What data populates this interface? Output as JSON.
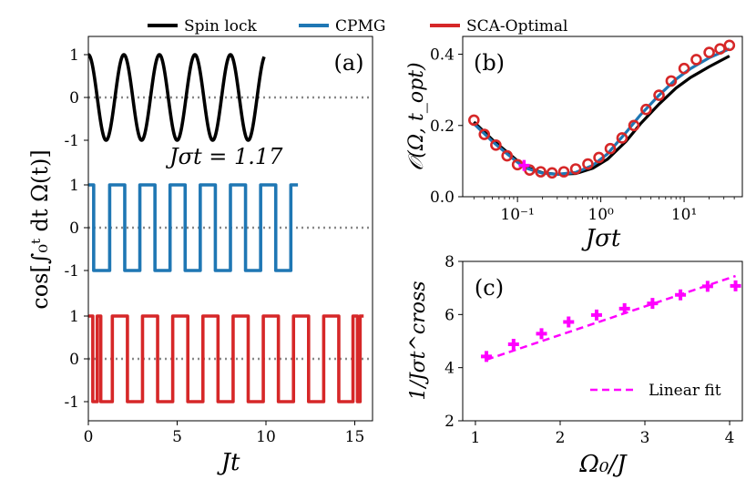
{
  "legend": {
    "items": [
      {
        "label": "Spin lock",
        "color": "#000000"
      },
      {
        "label": "CPMG",
        "color": "#1f77b4"
      },
      {
        "label": "SCA-Optimal",
        "color": "#d62728"
      }
    ]
  },
  "chart_data": [
    {
      "panel": "(a)",
      "type": "line",
      "xlabel": "Jt",
      "ylabel": "cos[∫₀ᵗ dt Ω(t)]",
      "annotation": "Jσt = 1.17",
      "xlim": [
        0,
        16
      ],
      "xticks": [
        "0",
        "5",
        "10",
        "15"
      ],
      "ytick_labels": [
        "1",
        "0",
        "-1",
        "1",
        "0",
        "-1",
        "1",
        "0",
        "-1"
      ],
      "series": [
        {
          "name": "Spin lock",
          "kind": "cosine",
          "frequency": 0.5,
          "x_end": 9.9,
          "offset": 0
        },
        {
          "name": "CPMG",
          "kind": "square",
          "switch_times": [
            0.3,
            1.2,
            2.05,
            2.9,
            3.75,
            4.6,
            5.45,
            6.3,
            7.15,
            8.0,
            8.85,
            9.7,
            10.55,
            11.4
          ],
          "x_end": 11.8,
          "offset": -1
        },
        {
          "name": "SCA-Optimal",
          "kind": "square",
          "switch_times": [
            0.25,
            0.5,
            0.7,
            1.35,
            2.2,
            3.05,
            3.9,
            4.75,
            5.6,
            6.45,
            7.3,
            8.15,
            9.0,
            9.85,
            10.7,
            11.55,
            12.4,
            13.25,
            14.1,
            14.9,
            15.15,
            15.3
          ],
          "x_end": 15.5,
          "offset": -2
        }
      ]
    },
    {
      "panel": "(b)",
      "type": "line",
      "xlabel": "Jσt",
      "ylabel": "𝒪(Ω, t_opt)",
      "xscale": "log",
      "xlim": [
        0.022,
        50
      ],
      "ylim": [
        0,
        0.45
      ],
      "xtick_labels": [
        "10⁻¹",
        "10⁰",
        "10¹"
      ],
      "yticks": [
        "0.0",
        "0.2",
        "0.4"
      ],
      "series": [
        {
          "name": "Spin lock",
          "x": [
            0.03,
            0.05,
            0.08,
            0.12,
            0.2,
            0.3,
            0.5,
            0.8,
            1.2,
            2,
            3,
            5,
            8,
            12,
            20,
            35
          ],
          "y": [
            0.21,
            0.16,
            0.12,
            0.085,
            0.067,
            0.063,
            0.065,
            0.08,
            0.105,
            0.155,
            0.205,
            0.26,
            0.305,
            0.335,
            0.365,
            0.395
          ]
        },
        {
          "name": "CPMG",
          "x": [
            0.03,
            0.05,
            0.08,
            0.12,
            0.2,
            0.3,
            0.5,
            0.8,
            1.2,
            2,
            3,
            5,
            8,
            12,
            20,
            35
          ],
          "y": [
            0.205,
            0.155,
            0.115,
            0.082,
            0.066,
            0.063,
            0.068,
            0.088,
            0.12,
            0.18,
            0.23,
            0.285,
            0.33,
            0.36,
            0.39,
            0.415
          ]
        },
        {
          "name": "SCA-Optimal",
          "x": [
            0.03,
            0.04,
            0.055,
            0.075,
            0.1,
            0.14,
            0.19,
            0.26,
            0.36,
            0.5,
            0.7,
            0.95,
            1.3,
            1.8,
            2.5,
            3.5,
            5,
            7,
            10,
            14,
            20,
            27,
            35
          ],
          "y": [
            0.215,
            0.175,
            0.145,
            0.115,
            0.09,
            0.075,
            0.07,
            0.067,
            0.07,
            0.078,
            0.092,
            0.11,
            0.135,
            0.165,
            0.2,
            0.245,
            0.285,
            0.325,
            0.36,
            0.385,
            0.405,
            0.415,
            0.425
          ]
        }
      ],
      "highlight_marker": {
        "x": 0.12,
        "y": 0.088,
        "color": "#ff00ff"
      }
    },
    {
      "panel": "(c)",
      "type": "scatter",
      "xlabel": "Ω₀/J",
      "ylabel": "1/Jσt^cross",
      "xlim": [
        0.85,
        4.15
      ],
      "ylim": [
        2,
        8
      ],
      "xticks": [
        "1",
        "2",
        "3",
        "4"
      ],
      "yticks": [
        "2",
        "4",
        "6",
        "8"
      ],
      "points": {
        "x": [
          1.13,
          1.45,
          1.78,
          2.1,
          2.43,
          2.76,
          3.09,
          3.42,
          3.74,
          4.07
        ],
        "y": [
          4.42,
          4.88,
          5.28,
          5.72,
          5.98,
          6.22,
          6.42,
          6.74,
          7.06,
          7.08
        ]
      },
      "fit": {
        "label": "Linear fit",
        "x": [
          1.13,
          4.07
        ],
        "y": [
          4.3,
          7.45
        ]
      }
    }
  ]
}
